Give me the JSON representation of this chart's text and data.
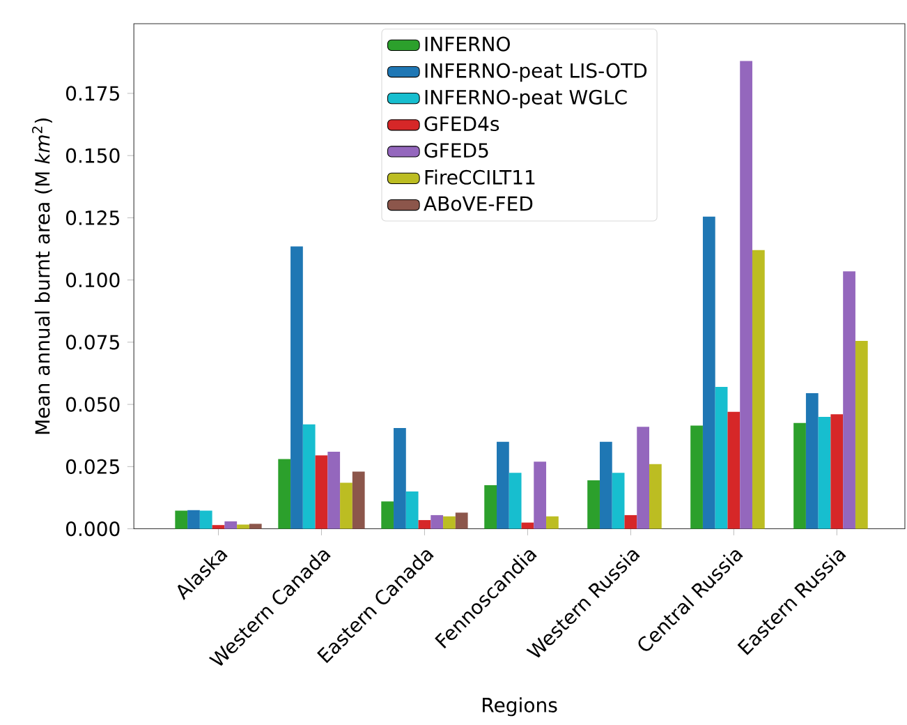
{
  "chart_data": {
    "type": "bar",
    "xlabel": "Regions",
    "ylabel": "Mean annual burnt area (M *km*$^{2}$)",
    "categories": [
      "Alaska",
      "Western Canada",
      "Eastern Canada",
      "Fennoscandia",
      "Western Russia",
      "Central Russia",
      "Eastern Russia"
    ],
    "series": [
      {
        "name": "INFERNO",
        "color": "#2ca02c",
        "values": [
          0.0073,
          0.028,
          0.011,
          0.0175,
          0.0195,
          0.0415,
          0.0425
        ]
      },
      {
        "name": "INFERNO-peat LIS-OTD",
        "color": "#1f77b4",
        "values": [
          0.0075,
          0.1135,
          0.0405,
          0.035,
          0.035,
          0.1255,
          0.0545
        ]
      },
      {
        "name": "INFERNO-peat WGLC",
        "color": "#17becf",
        "values": [
          0.0073,
          0.042,
          0.015,
          0.0225,
          0.0225,
          0.057,
          0.045
        ]
      },
      {
        "name": "GFED4s",
        "color": "#d62728",
        "values": [
          0.0015,
          0.0295,
          0.0035,
          0.0025,
          0.0055,
          0.047,
          0.046
        ]
      },
      {
        "name": "GFED5",
        "color": "#9467bd",
        "values": [
          0.003,
          0.031,
          0.0055,
          0.027,
          0.041,
          0.188,
          0.1035
        ]
      },
      {
        "name": "FireCCILT11",
        "color": "#bcbd22",
        "values": [
          0.0017,
          0.0185,
          0.005,
          0.005,
          0.026,
          0.112,
          0.0755
        ]
      },
      {
        "name": "ABoVE-FED",
        "color": "#8c564b",
        "values": [
          0.002,
          0.023,
          0.0065,
          null,
          null,
          null,
          null
        ]
      }
    ],
    "ylim": [
      0,
      0.203
    ],
    "yticks": [
      {
        "value": 0,
        "label": "0.000"
      },
      {
        "value": 0.025,
        "label": "0.025"
      },
      {
        "value": 0.05,
        "label": "0.050"
      },
      {
        "value": 0.075,
        "label": "0.075"
      },
      {
        "value": 0.1,
        "label": "0.100"
      },
      {
        "value": 0.125,
        "label": "0.125"
      },
      {
        "value": 0.15,
        "label": "0.150"
      },
      {
        "value": 0.175,
        "label": "0.175"
      }
    ],
    "legend": "top",
    "grid": false
  }
}
